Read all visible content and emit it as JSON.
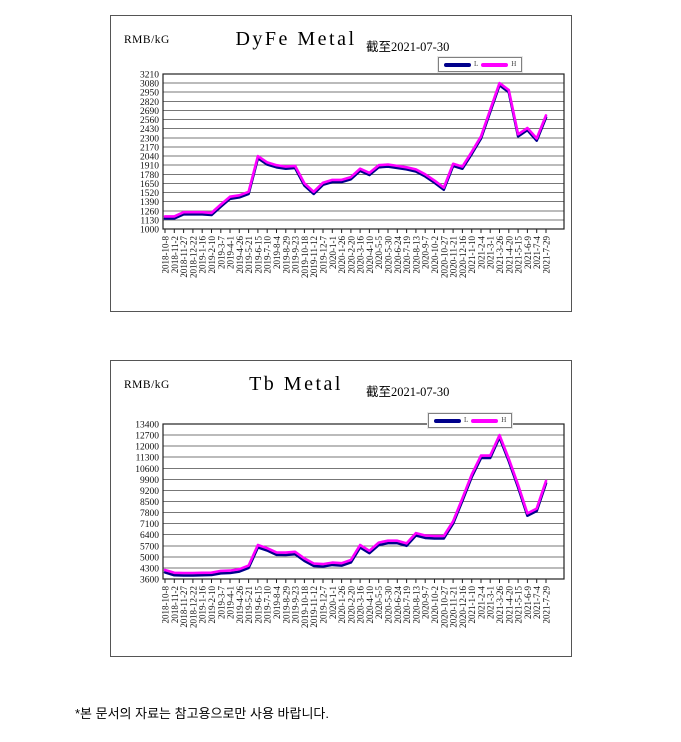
{
  "footer": {
    "note": "*본 문서의 자료는 참고용으로만 사용 바랍니다."
  },
  "chart_data": [
    {
      "type": "line",
      "title": "DyFe Metal",
      "unit_label": "RMB/kG",
      "date_note": "截至2021-07-30",
      "ylim": [
        1000,
        3210
      ],
      "ytick_step": 130,
      "grid": "horizontal",
      "legend_position": "top-right",
      "x_labels": [
        "2018-10-8",
        "2018-11-2",
        "2018-11-27",
        "2018-12-22",
        "2019-1-16",
        "2019-2-10",
        "2019-3-7",
        "2019-4-1",
        "2019-4-26",
        "2019-5-21",
        "2019-6-15",
        "2019-7-10",
        "2019-8-4",
        "2019-8-29",
        "2019-9-23",
        "2019-10-18",
        "2019-11-12",
        "2019-12-7",
        "2020-1-1",
        "2020-1-26",
        "2020-2-20",
        "2020-3-16",
        "2020-4-10",
        "2020-5-5",
        "2020-5-30",
        "2020-6-24",
        "2020-7-19",
        "2020-8-13",
        "2020-9-7",
        "2020-10-2",
        "2020-10-27",
        "2020-11-21",
        "2020-12-16",
        "2021-1-10",
        "2021-2-4",
        "2021-3-1",
        "2021-3-26",
        "2021-4-20",
        "2021-5-15",
        "2021-6-9",
        "2021-7-4",
        "2021-7-29"
      ],
      "series": [
        {
          "label": "L",
          "color": "#00008B",
          "values": [
            1150,
            1150,
            1210,
            1210,
            1210,
            1200,
            1320,
            1430,
            1450,
            1500,
            2010,
            1920,
            1880,
            1860,
            1870,
            1620,
            1500,
            1630,
            1670,
            1670,
            1710,
            1830,
            1770,
            1880,
            1890,
            1870,
            1850,
            1820,
            1750,
            1660,
            1560,
            1900,
            1860,
            2070,
            2290,
            2670,
            3050,
            2950,
            2320,
            2410,
            2260,
            2590
          ]
        },
        {
          "label": "H",
          "color": "#FF00FF",
          "values": [
            1180,
            1180,
            1240,
            1240,
            1240,
            1230,
            1350,
            1460,
            1480,
            1530,
            2040,
            1950,
            1910,
            1890,
            1900,
            1650,
            1530,
            1660,
            1700,
            1700,
            1740,
            1860,
            1800,
            1910,
            1920,
            1900,
            1880,
            1850,
            1780,
            1690,
            1590,
            1930,
            1890,
            2100,
            2320,
            2700,
            3080,
            2980,
            2350,
            2440,
            2290,
            2620
          ]
        }
      ]
    },
    {
      "type": "line",
      "title": "Tb Metal",
      "unit_label": "RMB/kG",
      "date_note": "截至2021-07-30",
      "ylim": [
        3600,
        13400
      ],
      "ytick_step": 700,
      "grid": "horizontal",
      "legend_position": "top-right",
      "x_labels": [
        "2018-10-8",
        "2018-11-2",
        "2018-11-27",
        "2018-12-22",
        "2019-1-16",
        "2019-2-10",
        "2019-3-7",
        "2019-4-1",
        "2019-4-26",
        "2019-5-21",
        "2019-6-15",
        "2019-7-10",
        "2019-8-4",
        "2019-8-29",
        "2019-9-23",
        "2019-10-18",
        "2019-11-12",
        "2019-12-7",
        "2020-1-1",
        "2020-1-26",
        "2020-2-20",
        "2020-3-16",
        "2020-4-10",
        "2020-5-5",
        "2020-5-30",
        "2020-6-24",
        "2020-7-19",
        "2020-8-13",
        "2020-9-7",
        "2020-10-2",
        "2020-10-27",
        "2020-11-21",
        "2020-12-16",
        "2021-1-10",
        "2021-2-4",
        "2021-3-1",
        "2021-3-26",
        "2021-4-20",
        "2021-5-15",
        "2021-6-9",
        "2021-7-4",
        "2021-7-29"
      ],
      "series": [
        {
          "label": "L",
          "color": "#00008B",
          "values": [
            4020,
            3840,
            3830,
            3830,
            3840,
            3850,
            3960,
            3980,
            4070,
            4300,
            5600,
            5400,
            5130,
            5120,
            5170,
            4750,
            4430,
            4390,
            4490,
            4450,
            4650,
            5600,
            5230,
            5750,
            5870,
            5870,
            5700,
            6350,
            6200,
            6170,
            6170,
            7100,
            8550,
            10050,
            11250,
            11250,
            12550,
            11050,
            9400,
            7600,
            7900,
            9650
          ]
        },
        {
          "label": "H",
          "color": "#FF00FF",
          "values": [
            4170,
            3990,
            3980,
            3980,
            3990,
            4000,
            4110,
            4130,
            4220,
            4450,
            5750,
            5550,
            5280,
            5270,
            5320,
            4900,
            4580,
            4540,
            4640,
            4600,
            4800,
            5750,
            5380,
            5900,
            6020,
            6020,
            5850,
            6500,
            6350,
            6320,
            6320,
            7250,
            8700,
            10200,
            11400,
            11400,
            12700,
            11200,
            9550,
            7750,
            8050,
            9800
          ]
        }
      ]
    }
  ]
}
